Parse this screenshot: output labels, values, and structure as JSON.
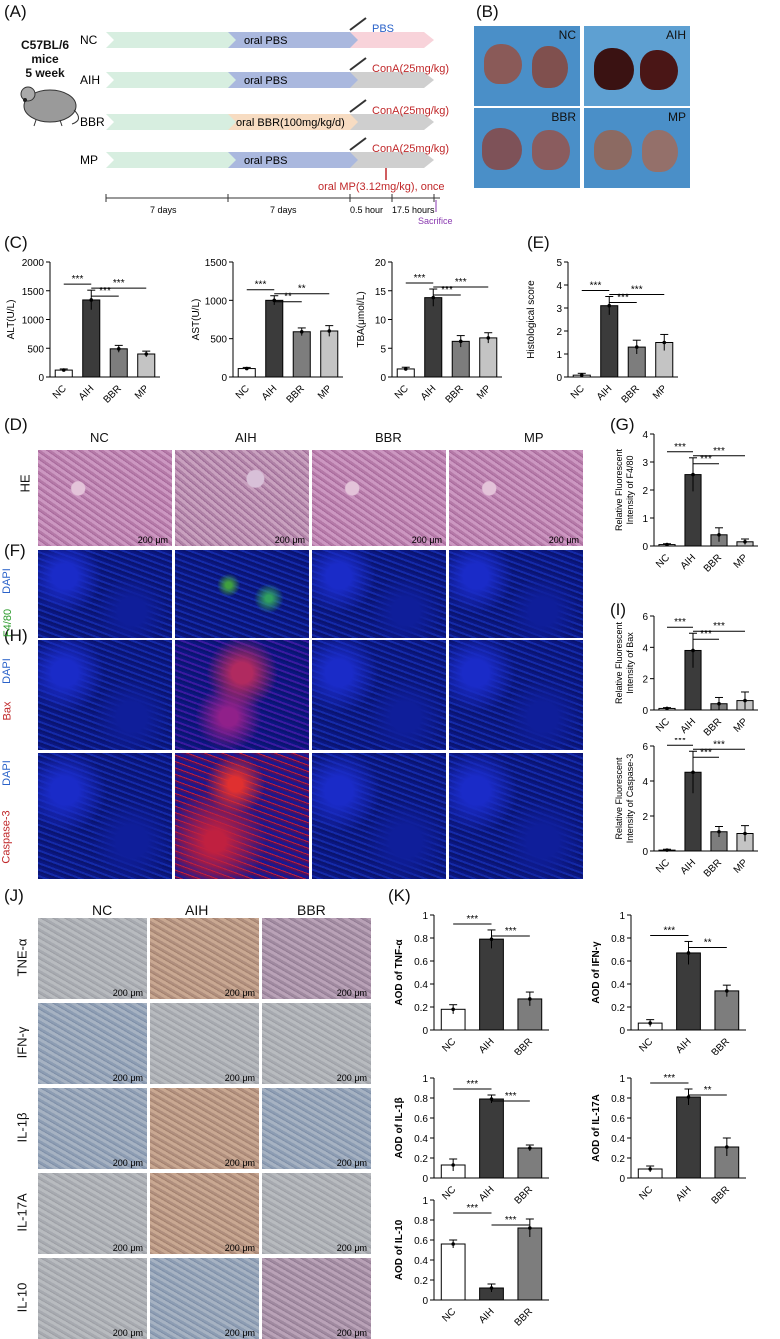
{
  "panels": [
    "(A)",
    "(B)",
    "(C)",
    "(D)",
    "(E)",
    "(F)",
    "(G)",
    "(H)",
    "(I)",
    "(J)",
    "(K)"
  ],
  "panelA": {
    "mouse_label": [
      "C57BL/6",
      "mice",
      "5 week"
    ],
    "groups": [
      {
        "name": "NC",
        "stage2": "oral PBS",
        "stage3": "PBS"
      },
      {
        "name": "AIH",
        "stage2": "oral PBS",
        "stage3": "ConA(25mg/kg)"
      },
      {
        "name": "BBR",
        "stage2": "oral BBR(100mg/kg/d)",
        "stage3": "ConA(25mg/kg)"
      },
      {
        "name": "MP",
        "stage2": "oral PBS",
        "stage3": "ConA(25mg/kg)"
      }
    ],
    "mp_note": "oral MP(3.12mg/kg), once",
    "timeline": [
      "7 days",
      "7 days",
      "0.5 hour",
      "17.5 hours"
    ],
    "sacrifice": "Sacrifice",
    "colors": {
      "stage1": "#d7eee0",
      "stage2": "#aab8de",
      "pbs": "#f8d3da",
      "cona": "#cfcfcf",
      "bbr": "#f7dcc2",
      "red": "#c0282a",
      "blue": "#2a62c9",
      "purple": "#8a3ab0"
    }
  },
  "panelB": {
    "labels": [
      "NC",
      "AIH",
      "BBR",
      "MP"
    ]
  },
  "panelD": {
    "columns": [
      "NC",
      "AIH",
      "BBR",
      "MP"
    ],
    "row_label": "HE",
    "scale": "200 μm"
  },
  "panelF": {
    "stain1": "DAPI",
    "stain2": "F4/80"
  },
  "panelH": {
    "rows": [
      {
        "stain1": "DAPI",
        "stain2": "Bax"
      },
      {
        "stain1": "DAPI",
        "stain2": "Caspase-3"
      }
    ]
  },
  "panelJ": {
    "columns": [
      "NC",
      "AIH",
      "BBR"
    ],
    "rows": [
      "TNE-α",
      "IFN-γ",
      "IL-1β",
      "IL-17A",
      "IL-10"
    ],
    "scale": "200 μm"
  },
  "chart_data": [
    {
      "id": "C1",
      "type": "bar",
      "categories": [
        "NC",
        "AIH",
        "BBR",
        "MP"
      ],
      "values": [
        120,
        1340,
        490,
        400
      ],
      "errors": [
        20,
        170,
        60,
        50
      ],
      "ylabel": "ALT(U/L)",
      "ylim": [
        0,
        2000
      ],
      "yticks": [
        0,
        500,
        1000,
        1500,
        2000
      ],
      "sig": [
        {
          "a": 0,
          "b": 1,
          "t": "***"
        },
        {
          "a": 1,
          "b": 2,
          "t": "***"
        },
        {
          "a": 1,
          "b": 3,
          "t": "***"
        }
      ]
    },
    {
      "id": "C2",
      "type": "bar",
      "categories": [
        "NC",
        "AIH",
        "BBR",
        "MP"
      ],
      "values": [
        110,
        1000,
        590,
        600
      ],
      "errors": [
        15,
        60,
        50,
        70
      ],
      "ylabel": "AST(U/L)",
      "ylim": [
        0,
        1500
      ],
      "yticks": [
        0,
        500,
        1000,
        1500
      ],
      "sig": [
        {
          "a": 0,
          "b": 1,
          "t": "***"
        },
        {
          "a": 1,
          "b": 2,
          "t": "**"
        },
        {
          "a": 1,
          "b": 3,
          "t": "**"
        }
      ]
    },
    {
      "id": "C3",
      "type": "bar",
      "categories": [
        "NC",
        "AIH",
        "BBR",
        "MP"
      ],
      "values": [
        1.4,
        13.8,
        6.2,
        6.8
      ],
      "errors": [
        0.3,
        1.5,
        1.0,
        0.9
      ],
      "ylabel": "TBA(μmol/L)",
      "ylim": [
        0,
        20
      ],
      "yticks": [
        0,
        5,
        10,
        15,
        20
      ],
      "sig": [
        {
          "a": 0,
          "b": 1,
          "t": "***"
        },
        {
          "a": 1,
          "b": 2,
          "t": "***"
        },
        {
          "a": 1,
          "b": 3,
          "t": "***"
        }
      ]
    },
    {
      "id": "E",
      "type": "bar",
      "categories": [
        "NC",
        "AIH",
        "BBR",
        "MP"
      ],
      "values": [
        0.08,
        3.1,
        1.3,
        1.5
      ],
      "errors": [
        0.08,
        0.4,
        0.3,
        0.35
      ],
      "ylabel": "Histological score",
      "ylim": [
        0,
        5
      ],
      "yticks": [
        0,
        1,
        2,
        3,
        4,
        5
      ],
      "sig": [
        {
          "a": 0,
          "b": 1,
          "t": "***"
        },
        {
          "a": 1,
          "b": 2,
          "t": "***"
        },
        {
          "a": 1,
          "b": 3,
          "t": "***"
        }
      ]
    },
    {
      "id": "G",
      "type": "bar",
      "categories": [
        "NC",
        "AIH",
        "BBR",
        "MP"
      ],
      "values": [
        0.05,
        2.55,
        0.4,
        0.15
      ],
      "errors": [
        0.03,
        0.6,
        0.25,
        0.1
      ],
      "ylabel": "Relative Fluorescent Intensity of F4/80",
      "ylim": [
        0,
        4
      ],
      "yticks": [
        0,
        1,
        2,
        3,
        4
      ],
      "sig": [
        {
          "a": 0,
          "b": 1,
          "t": "***"
        },
        {
          "a": 1,
          "b": 2,
          "t": "***"
        },
        {
          "a": 1,
          "b": 3,
          "t": "***"
        }
      ]
    },
    {
      "id": "I1",
      "type": "bar",
      "categories": [
        "NC",
        "AIH",
        "BBR",
        "MP"
      ],
      "values": [
        0.1,
        3.8,
        0.4,
        0.6
      ],
      "errors": [
        0.05,
        1.1,
        0.4,
        0.55
      ],
      "ylabel": "Relative Fluorescent Intensity of Bax",
      "ylim": [
        0,
        6
      ],
      "yticks": [
        0,
        2,
        4,
        6
      ],
      "sig": [
        {
          "a": 0,
          "b": 1,
          "t": "***"
        },
        {
          "a": 1,
          "b": 2,
          "t": "***"
        },
        {
          "a": 1,
          "b": 3,
          "t": "***"
        }
      ]
    },
    {
      "id": "I2",
      "type": "bar",
      "categories": [
        "NC",
        "AIH",
        "BBR",
        "MP"
      ],
      "values": [
        0.05,
        4.5,
        1.1,
        1.0
      ],
      "errors": [
        0.05,
        1.2,
        0.3,
        0.45
      ],
      "ylabel": "Relative Fluorescent Intensity of Caspase-3",
      "ylim": [
        0,
        6
      ],
      "yticks": [
        0,
        2,
        4,
        6
      ],
      "sig": [
        {
          "a": 0,
          "b": 1,
          "t": "***"
        },
        {
          "a": 1,
          "b": 2,
          "t": "***"
        },
        {
          "a": 1,
          "b": 3,
          "t": "***"
        }
      ]
    },
    {
      "id": "K1",
      "type": "bar",
      "categories": [
        "NC",
        "AIH",
        "BBR"
      ],
      "values": [
        0.18,
        0.79,
        0.27
      ],
      "errors": [
        0.04,
        0.08,
        0.06
      ],
      "ylabel": "AOD of TNF-α",
      "ylim": [
        0,
        1.0
      ],
      "yticks": [
        0,
        0.2,
        0.4,
        0.6,
        0.8,
        1.0
      ],
      "sig": [
        {
          "a": 0,
          "b": 1,
          "t": "***"
        },
        {
          "a": 1,
          "b": 2,
          "t": "***"
        }
      ]
    },
    {
      "id": "K2",
      "type": "bar",
      "categories": [
        "NC",
        "AIH",
        "BBR"
      ],
      "values": [
        0.06,
        0.67,
        0.34
      ],
      "errors": [
        0.03,
        0.1,
        0.05
      ],
      "ylabel": "AOD of IFN-γ",
      "ylim": [
        0,
        1.0
      ],
      "yticks": [
        0,
        0.2,
        0.4,
        0.6,
        0.8,
        1.0
      ],
      "sig": [
        {
          "a": 0,
          "b": 1,
          "t": "***"
        },
        {
          "a": 1,
          "b": 2,
          "t": "**"
        }
      ]
    },
    {
      "id": "K3",
      "type": "bar",
      "categories": [
        "NC",
        "AIH",
        "BBR"
      ],
      "values": [
        0.13,
        0.79,
        0.3
      ],
      "errors": [
        0.06,
        0.04,
        0.03
      ],
      "ylabel": "AOD of IL-1β",
      "ylim": [
        0,
        1.0
      ],
      "yticks": [
        0,
        0.2,
        0.4,
        0.6,
        0.8,
        1.0
      ],
      "sig": [
        {
          "a": 0,
          "b": 1,
          "t": "***"
        },
        {
          "a": 1,
          "b": 2,
          "t": "***"
        }
      ]
    },
    {
      "id": "K4",
      "type": "bar",
      "categories": [
        "NC",
        "AIH",
        "BBR"
      ],
      "values": [
        0.09,
        0.81,
        0.31
      ],
      "errors": [
        0.03,
        0.08,
        0.09
      ],
      "ylabel": "AOD of IL-17A",
      "ylim": [
        0,
        1.0
      ],
      "yticks": [
        0,
        0.2,
        0.4,
        0.6,
        0.8,
        1.0
      ],
      "sig": [
        {
          "a": 0,
          "b": 1,
          "t": "***"
        },
        {
          "a": 1,
          "b": 2,
          "t": "**"
        }
      ]
    },
    {
      "id": "K5",
      "type": "bar",
      "categories": [
        "NC",
        "AIH",
        "BBR"
      ],
      "values": [
        0.56,
        0.12,
        0.72
      ],
      "errors": [
        0.04,
        0.04,
        0.09
      ],
      "ylabel": "AOD of IL-10",
      "ylim": [
        0,
        1.0
      ],
      "yticks": [
        0,
        0.2,
        0.4,
        0.6,
        0.8,
        1.0
      ],
      "sig": [
        {
          "a": 0,
          "b": 1,
          "t": "***"
        },
        {
          "a": 1,
          "b": 2,
          "t": "***"
        }
      ]
    }
  ]
}
